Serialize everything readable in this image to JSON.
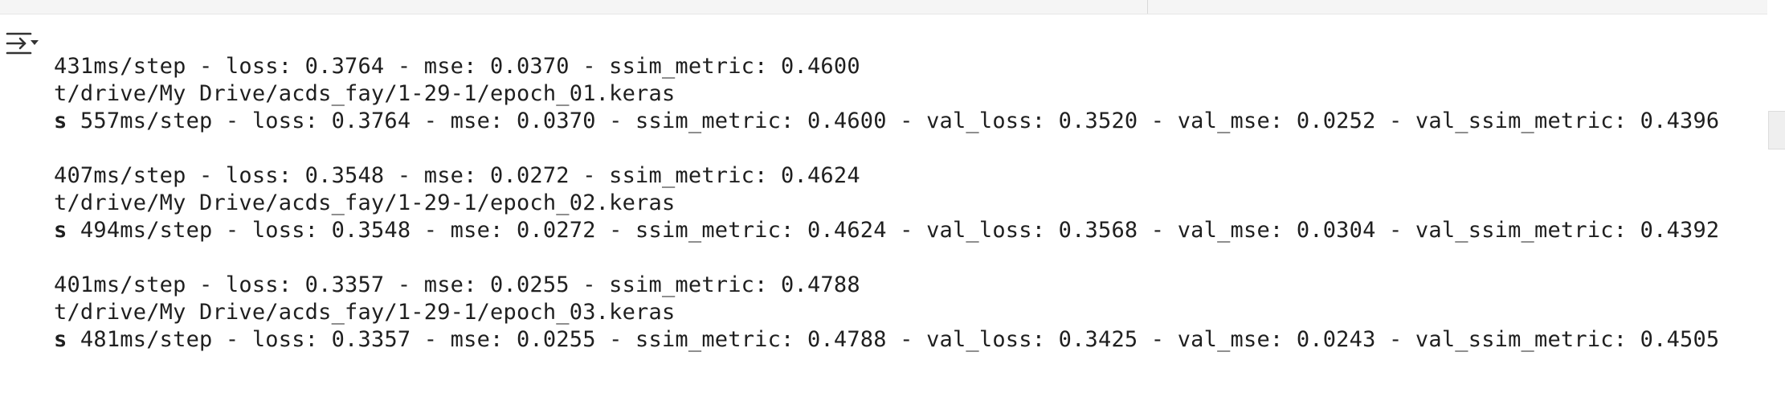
{
  "colors": {
    "text": "#1f1f1f",
    "background": "#ffffff",
    "top_strip": "#f5f5f5"
  },
  "toolbar": {
    "output_toggle_icon": "output-collapse-icon"
  },
  "output": {
    "epochs": [
      {
        "step_line": "431ms/step - loss: 0.3764 - mse: 0.0370 - ssim_metric: 0.4600",
        "path_line": "t/drive/My Drive/acds_fay/1-29-1/epoch_01.keras",
        "summary_prefix": "s",
        "summary_rest": " 557ms/step - loss: 0.3764 - mse: 0.0370 - ssim_metric: 0.4600 - val_loss: 0.3520 - val_mse: 0.0252 - val_ssim_metric: 0.4396"
      },
      {
        "step_line": "407ms/step - loss: 0.3548 - mse: 0.0272 - ssim_metric: 0.4624",
        "path_line": "t/drive/My Drive/acds_fay/1-29-1/epoch_02.keras",
        "summary_prefix": "s",
        "summary_rest": " 494ms/step - loss: 0.3548 - mse: 0.0272 - ssim_metric: 0.4624 - val_loss: 0.3568 - val_mse: 0.0304 - val_ssim_metric: 0.4392"
      },
      {
        "step_line": "401ms/step - loss: 0.3357 - mse: 0.0255 - ssim_metric: 0.4788",
        "path_line": "t/drive/My Drive/acds_fay/1-29-1/epoch_03.keras",
        "summary_prefix": "s",
        "summary_rest": " 481ms/step - loss: 0.3357 - mse: 0.0255 - ssim_metric: 0.4788 - val_loss: 0.3425 - val_mse: 0.0243 - val_ssim_metric: 0.4505"
      }
    ]
  }
}
